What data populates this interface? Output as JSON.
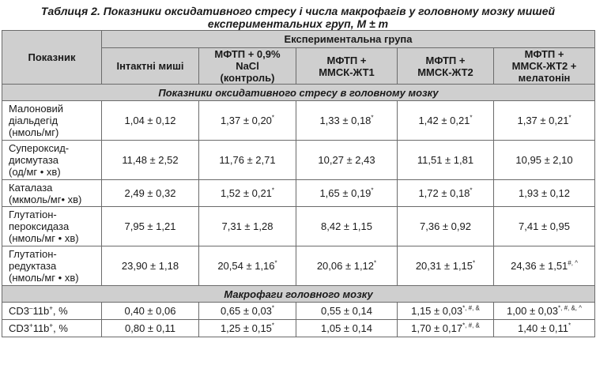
{
  "caption": {
    "line1": "Таблиця 2. Показники оксидативного стресу і числа макрофагів у головному мозку мишей",
    "line2": "експериментальних груп, M ± m"
  },
  "header": {
    "indicator": "Показник",
    "group": "Експериментальна група",
    "columns": [
      {
        "l1": "Інтактні миші",
        "l2": "",
        "l3": ""
      },
      {
        "l1": "МФТП + 0,9%",
        "l2": "NaCl",
        "l3": "(контроль)"
      },
      {
        "l1": "МФТП +",
        "l2": "ММСК-ЖТ1",
        "l3": ""
      },
      {
        "l1": "МФТП +",
        "l2": "ММСК-ЖТ2",
        "l3": ""
      },
      {
        "l1": "МФТП +",
        "l2": "ММСК-ЖТ2 +",
        "l3": "мелатонін"
      }
    ]
  },
  "sections": {
    "oxidative": "Показники оксидативного стресу в головному мозку",
    "macrophages": "Макрофаги головного мозку"
  },
  "rows": [
    {
      "l1": "Малоновий",
      "l2": "діальдегід",
      "l3": "(нмоль/мг)",
      "v": [
        {
          "t": "1,04 ± 0,12",
          "s": ""
        },
        {
          "t": "1,37 ± 0,20",
          "s": "*"
        },
        {
          "t": "1,33 ± 0,18",
          "s": "*"
        },
        {
          "t": "1,42 ± 0,21",
          "s": "*"
        },
        {
          "t": "1,37 ± 0,21",
          "s": "*"
        }
      ]
    },
    {
      "l1": "Супероксид-",
      "l2": "дисмутаза",
      "l3": "(од/мг • хв)",
      "v": [
        {
          "t": "11,48 ± 2,52",
          "s": ""
        },
        {
          "t": "11,76 ± 2,71",
          "s": ""
        },
        {
          "t": "10,27 ± 2,43",
          "s": ""
        },
        {
          "t": "11,51 ± 1,81",
          "s": ""
        },
        {
          "t": "10,95 ± 2,10",
          "s": ""
        }
      ]
    },
    {
      "l1": "Каталаза",
      "l2": "(мкмоль/мг• хв)",
      "l3": "",
      "v": [
        {
          "t": "2,49 ± 0,32",
          "s": ""
        },
        {
          "t": "1,52 ± 0,21",
          "s": "*"
        },
        {
          "t": "1,65 ± 0,19",
          "s": "*"
        },
        {
          "t": "1,72 ± 0,18",
          "s": "*"
        },
        {
          "t": "1,93 ± 0,12",
          "s": ""
        }
      ]
    },
    {
      "l1": "Глутатіон-",
      "l2": "пероксидаза",
      "l3": "(нмоль/мг • хв)",
      "v": [
        {
          "t": "7,95 ± 1,21",
          "s": ""
        },
        {
          "t": "7,31 ± 1,28",
          "s": ""
        },
        {
          "t": "8,42 ± 1,15",
          "s": ""
        },
        {
          "t": "7,36 ± 0,92",
          "s": ""
        },
        {
          "t": "7,41 ± 0,95",
          "s": ""
        }
      ]
    },
    {
      "l1": "Глутатіон-",
      "l2": "редуктаза",
      "l3": "(нмоль/мг • хв)",
      "v": [
        {
          "t": "23,90 ± 1,18",
          "s": ""
        },
        {
          "t": "20,54 ± 1,16",
          "s": "*"
        },
        {
          "t": "20,06 ± 1,12",
          "s": "*"
        },
        {
          "t": "20,31 ± 1,15",
          "s": "*"
        },
        {
          "t": "24,36 ± 1,51",
          "s": "#, ^"
        }
      ]
    }
  ],
  "macro_rows": [
    {
      "name": "CD3",
      "sup1": "–",
      "mid": "11b",
      "sup2": "+",
      "unit": ", %",
      "v": [
        {
          "t": "0,40 ± 0,06",
          "s": ""
        },
        {
          "t": "0,65 ± 0,03",
          "s": "*"
        },
        {
          "t": "0,55 ± 0,14",
          "s": ""
        },
        {
          "t": "1,15 ± 0,03",
          "s": "*, #, &"
        },
        {
          "t": "1,00 ± 0,03",
          "s": "*, #, &, ^"
        }
      ]
    },
    {
      "name": "CD3",
      "sup1": "+",
      "mid": "11b",
      "sup2": "+",
      "unit": ", %",
      "v": [
        {
          "t": "0,80 ± 0,11",
          "s": ""
        },
        {
          "t": "1,25 ± 0,15",
          "s": "*"
        },
        {
          "t": "1,05 ± 0,14",
          "s": ""
        },
        {
          "t": "1,70 ± 0,17",
          "s": "*, #, &"
        },
        {
          "t": "1,40 ± 0,11",
          "s": "*"
        }
      ]
    }
  ]
}
